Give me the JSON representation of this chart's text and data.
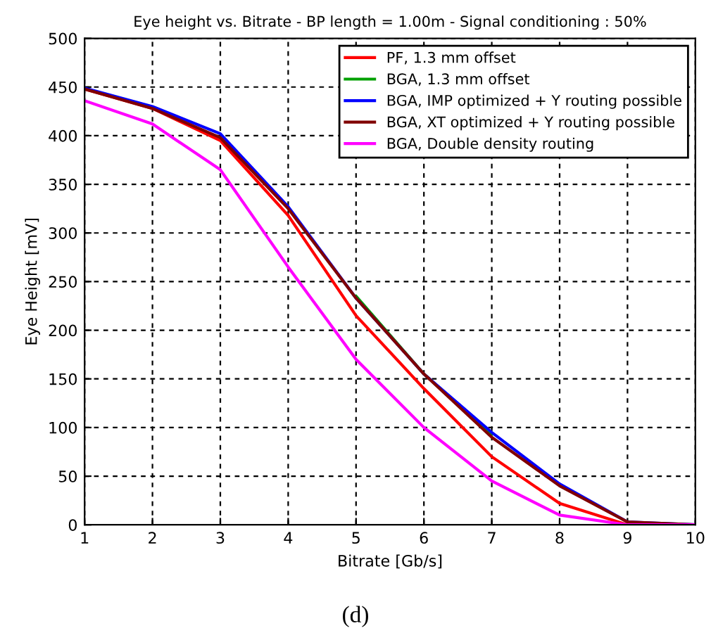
{
  "chart_data": {
    "type": "line",
    "title": "Eye height vs. Bitrate - BP length = 1.00m - Signal conditioning : 50%",
    "xlabel": "Bitrate [Gb/s]",
    "ylabel": "Eye Height [mV]",
    "x": [
      1,
      2,
      3,
      4,
      5,
      6,
      7,
      8,
      9,
      10
    ],
    "series": [
      {
        "name": "PF, 1.3 mm offset",
        "color": "#ff0000",
        "values": [
          448,
          428,
          395,
          318,
          215,
          140,
          70,
          22,
          0,
          0
        ]
      },
      {
        "name": "BGA, 1.3 mm offset",
        "color": "#00a000",
        "values": [
          null,
          null,
          null,
          null,
          235,
          155,
          93,
          null,
          null,
          null
        ]
      },
      {
        "name": "BGA, IMP optimized + Y routing possible",
        "color": "#0000ff",
        "values": [
          449,
          430,
          402,
          327,
          233,
          155,
          95,
          42,
          3,
          0
        ]
      },
      {
        "name": "BGA, XT optimized + Y routing possible",
        "color": "#800000",
        "values": [
          448,
          428,
          398,
          325,
          233,
          155,
          90,
          40,
          3,
          0
        ]
      },
      {
        "name": "BGA, Double density routing",
        "color": "#ff00ff",
        "values": [
          436,
          412,
          365,
          265,
          170,
          100,
          45,
          10,
          0,
          0
        ]
      }
    ],
    "xlim": [
      1,
      10
    ],
    "ylim": [
      0,
      500
    ],
    "xticks": [
      1,
      2,
      3,
      4,
      5,
      6,
      7,
      8,
      9,
      10
    ],
    "yticks": [
      0,
      50,
      100,
      150,
      200,
      250,
      300,
      350,
      400,
      450,
      500
    ],
    "grid": true,
    "legend": "top right",
    "marker": "none",
    "line_style": "solid",
    "annotations": [
      "(d)"
    ]
  }
}
